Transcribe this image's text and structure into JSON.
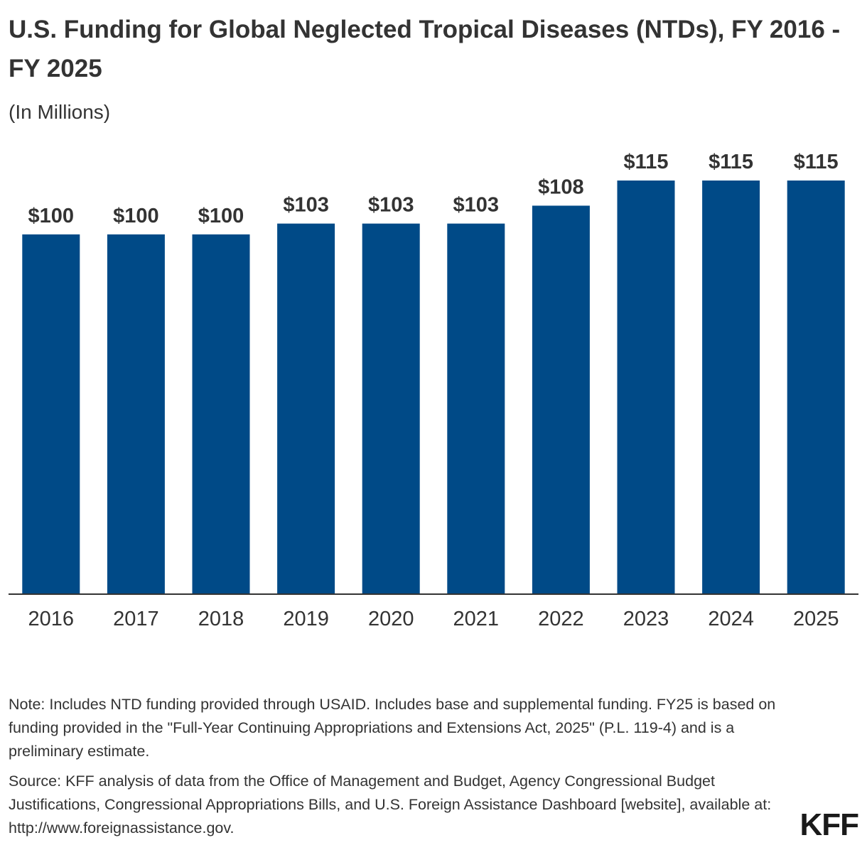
{
  "header": {
    "title": "U.S. Funding for Global Neglected Tropical Diseases (NTDs), FY 2016 - FY 2025",
    "subtitle": "(In Millions)"
  },
  "chart_data": {
    "type": "bar",
    "title": "U.S. Funding for Global Neglected Tropical Diseases (NTDs), FY 2016 - FY 2025",
    "subtitle": "(In Millions)",
    "xlabel": "",
    "ylabel": "",
    "categories": [
      "2016",
      "2017",
      "2018",
      "2019",
      "2020",
      "2021",
      "2022",
      "2023",
      "2024",
      "2025"
    ],
    "values": [
      100,
      100,
      100,
      103,
      103,
      103,
      108,
      115,
      115,
      115
    ],
    "labels": [
      "$100",
      "$100",
      "$100",
      "$103",
      "$103",
      "$103",
      "$108",
      "$115",
      "$115",
      "$115"
    ],
    "ylim": [
      0,
      115
    ],
    "grid": false,
    "legend": "none",
    "bar_color": "#004a87"
  },
  "footer": {
    "note": "Note: Includes NTD funding provided through USAID. Includes base and supplemental funding. FY25 is based on funding provided in the \"Full-Year Continuing Appropriations and Extensions Act, 2025\" (P.L. 119-4) and is a preliminary estimate.",
    "source": "Source: KFF analysis of data from the Office of Management and Budget, Agency Congressional Budget Justifications, Congressional Appropriations Bills, and U.S. Foreign Assistance Dashboard [website], available at: http://www.foreignassistance.gov.",
    "logo": "KFF"
  }
}
